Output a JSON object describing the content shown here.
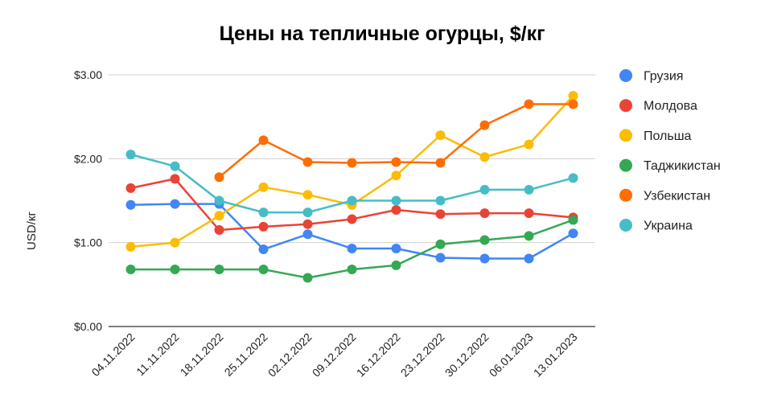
{
  "chart_data": {
    "type": "line",
    "title": "Цены на тепличные огурцы, $/кг",
    "ylabel": "USD/кг",
    "xlabel": "",
    "ylim": [
      0,
      3
    ],
    "yticks": [
      0,
      1,
      2,
      3
    ],
    "ytick_labels": [
      "$0.00",
      "$1.00",
      "$2.00",
      "$3.00"
    ],
    "grid": true,
    "legend_position": "right",
    "categories": [
      "04.11.2022",
      "11.11.2022",
      "18.11.2022",
      "25.11.2022",
      "02.12.2022",
      "09.12.2022",
      "16.12.2022",
      "23.12.2022",
      "30.12.2022",
      "06.01.2023",
      "13.01.2023"
    ],
    "series": [
      {
        "name": "Грузия",
        "color": "#4285F4",
        "values": [
          1.45,
          1.46,
          1.46,
          0.92,
          1.1,
          0.93,
          0.93,
          0.82,
          0.81,
          0.81,
          1.11
        ]
      },
      {
        "name": "Молдова",
        "color": "#EA4335",
        "values": [
          1.65,
          1.76,
          1.15,
          1.19,
          1.22,
          1.28,
          1.39,
          1.34,
          1.35,
          1.35,
          1.3
        ]
      },
      {
        "name": "Польша",
        "color": "#FBBC04",
        "values": [
          0.95,
          1.0,
          1.32,
          1.66,
          1.57,
          1.45,
          1.8,
          2.28,
          2.02,
          2.17,
          2.75
        ]
      },
      {
        "name": "Таджикистан",
        "color": "#34A853",
        "values": [
          0.68,
          0.68,
          0.68,
          0.68,
          0.58,
          0.68,
          0.73,
          0.98,
          1.03,
          1.08,
          1.27
        ]
      },
      {
        "name": "Узбекистан",
        "color": "#FF6D01",
        "values": [
          null,
          null,
          1.78,
          2.22,
          1.96,
          1.95,
          1.96,
          1.95,
          2.4,
          2.65,
          2.65
        ]
      },
      {
        "name": "Украина",
        "color": "#46BDC6",
        "values": [
          2.05,
          1.91,
          1.5,
          1.36,
          1.36,
          1.5,
          1.5,
          1.5,
          1.63,
          1.63,
          1.77
        ]
      }
    ]
  }
}
